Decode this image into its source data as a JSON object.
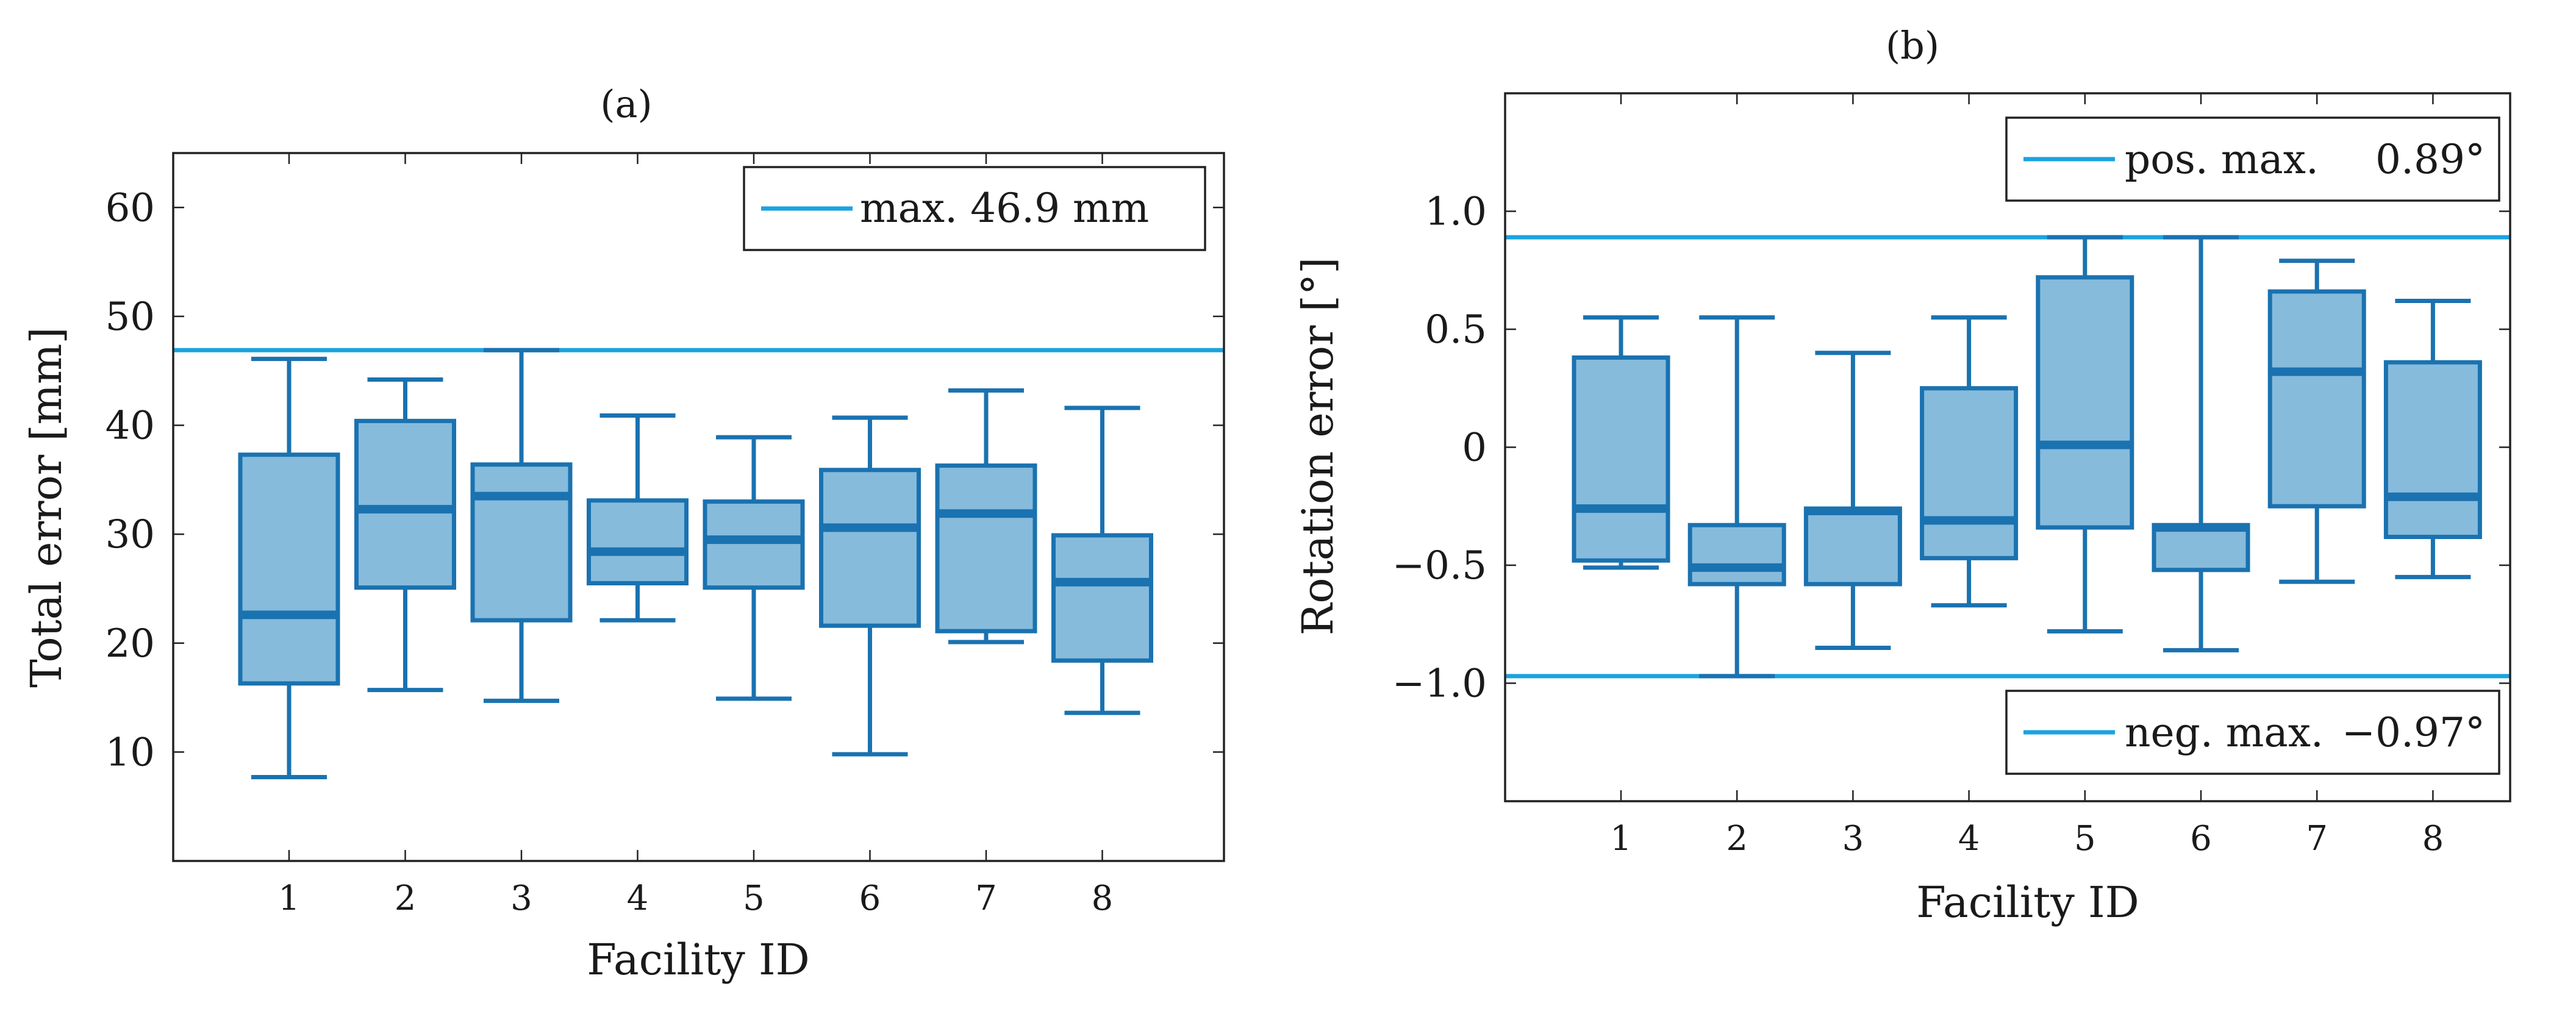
{
  "colors": {
    "box_fill": "#86bbdc",
    "box_stroke": "#1a72b0",
    "ref_line": "#1aa3df",
    "axis": "#222222"
  },
  "chart_data": [
    {
      "type": "box",
      "title": "(a)",
      "xlabel": "Facility ID",
      "ylabel": "Total error [mm]",
      "ylim": [
        0,
        65
      ],
      "yticks": [
        10,
        20,
        30,
        40,
        50,
        60
      ],
      "ytick_labels": [
        "10",
        "20",
        "30",
        "40",
        "50",
        "60"
      ],
      "categories": [
        "1",
        "2",
        "3",
        "4",
        "5",
        "6",
        "7",
        "8"
      ],
      "boxes": [
        {
          "min": 7.7,
          "q1": 16.3,
          "median": 22.6,
          "q3": 37.3,
          "max": 46.1
        },
        {
          "min": 15.7,
          "q1": 25.1,
          "median": 32.3,
          "q3": 40.4,
          "max": 44.2
        },
        {
          "min": 14.7,
          "q1": 22.1,
          "median": 33.5,
          "q3": 36.4,
          "max": 46.9
        },
        {
          "min": 22.1,
          "q1": 25.5,
          "median": 28.4,
          "q3": 33.1,
          "max": 40.9
        },
        {
          "min": 14.9,
          "q1": 25.1,
          "median": 29.5,
          "q3": 33.0,
          "max": 38.9
        },
        {
          "min": 9.8,
          "q1": 21.6,
          "median": 30.6,
          "q3": 35.9,
          "max": 40.7
        },
        {
          "min": 20.1,
          "q1": 21.1,
          "median": 31.9,
          "q3": 36.3,
          "max": 43.2
        },
        {
          "min": 13.6,
          "q1": 18.4,
          "median": 25.6,
          "q3": 29.9,
          "max": 41.6
        }
      ],
      "reference_lines": [
        {
          "value": 46.9,
          "label": "max. 46.9 mm"
        }
      ],
      "legend_position": "top-right"
    },
    {
      "type": "box",
      "title": "(b)",
      "xlabel": "Facility ID",
      "ylabel": "Rotation error [°]",
      "ylim": [
        -1.5,
        1.5
      ],
      "yticks": [
        -1.0,
        -0.5,
        0,
        0.5,
        1.0
      ],
      "ytick_labels": [
        "−1.0",
        "−0.5",
        "0",
        "0.5",
        "1.0"
      ],
      "categories": [
        "1",
        "2",
        "3",
        "4",
        "5",
        "6",
        "7",
        "8"
      ],
      "boxes": [
        {
          "min": -0.51,
          "q1": -0.48,
          "median": -0.26,
          "q3": 0.38,
          "max": 0.55
        },
        {
          "min": -0.97,
          "q1": -0.58,
          "median": -0.51,
          "q3": -0.33,
          "max": 0.55
        },
        {
          "min": -0.85,
          "q1": -0.58,
          "median": -0.27,
          "q3": -0.26,
          "max": 0.4
        },
        {
          "min": -0.67,
          "q1": -0.47,
          "median": -0.31,
          "q3": 0.25,
          "max": 0.55
        },
        {
          "min": -0.78,
          "q1": -0.34,
          "median": 0.01,
          "q3": 0.72,
          "max": 0.89
        },
        {
          "min": -0.86,
          "q1": -0.52,
          "median": -0.34,
          "q3": -0.33,
          "max": 0.89
        },
        {
          "min": -0.57,
          "q1": -0.25,
          "median": 0.32,
          "q3": 0.66,
          "max": 0.79
        },
        {
          "min": -0.55,
          "q1": -0.38,
          "median": -0.21,
          "q3": 0.36,
          "max": 0.62
        }
      ],
      "reference_lines": [
        {
          "value": 0.89,
          "label": "pos. max.",
          "value_label": "0.89°"
        },
        {
          "value": -0.97,
          "label": "neg. max.",
          "value_label": "−0.97°"
        }
      ],
      "legend_position": "top-right and bottom-right"
    }
  ]
}
